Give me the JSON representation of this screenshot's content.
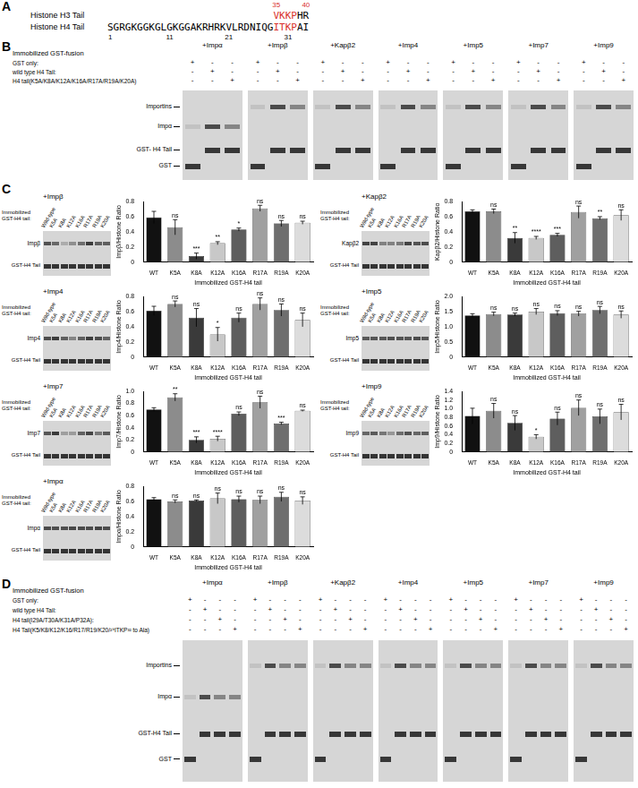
{
  "panel_a": {
    "letter": "A",
    "h3": {
      "label": "Histone H3 Tail",
      "numbers": {
        "values": [
          35,
          40
        ],
        "color": "#d9302b"
      },
      "segments": [
        {
          "text": "VKKP",
          "color": "#d9302b"
        },
        {
          "text": "HR",
          "color": "#000000"
        }
      ]
    },
    "h4": {
      "label": "Histone H4 Tail",
      "numbers": {
        "values": [
          1,
          11,
          21,
          31
        ],
        "color": "#000000"
      },
      "segments": [
        {
          "text": "SGRGKGGKGLGKGGAKRHRKVLRDNIQG",
          "color": "#000000"
        },
        {
          "text": "ITKP",
          "color": "#d9302b"
        },
        {
          "text": "AI",
          "color": "#000000"
        }
      ]
    }
  },
  "panel_b": {
    "letter": "B",
    "header": "Immobilized GST-fusion",
    "groups": [
      "+Impα",
      "+Impβ",
      "+Kapβ2",
      "+Imp4",
      "+Imp5",
      "+Imp7",
      "+Imp9"
    ],
    "rows": [
      "GST only:",
      "wild type H4 Tail:",
      "H4 tail(K5A/K8A/K12A/K16A/R17A/R19A/K20A)"
    ],
    "signs": [
      [
        "+",
        "-",
        "-"
      ],
      [
        "-",
        "+",
        "-"
      ],
      [
        "-",
        "-",
        "+"
      ]
    ],
    "band_labels": [
      "Importins",
      "Impα",
      "GST- H4 Tail",
      "GST"
    ]
  },
  "panel_c": {
    "letter": "C"
  },
  "chart_data": [
    {
      "type": "bar",
      "categories": [
        "WT",
        "K5A",
        "K8A",
        "K12A",
        "K16A",
        "R17A",
        "R19A",
        "K20A"
      ],
      "values": [
        0.59,
        0.46,
        0.08,
        0.25,
        0.43,
        0.71,
        0.51,
        0.52
      ],
      "errors": [
        0.08,
        0.1,
        0.04,
        0.02,
        0.02,
        0.04,
        0.04,
        0.02
      ],
      "significance": [
        null,
        "ns",
        "***",
        "**",
        "*",
        "ns",
        "ns",
        "ns"
      ],
      "colors": [
        "#111111",
        "#8c8c8c",
        "#3a3a3a",
        "#c8c8c8",
        "#5e5e5e",
        "#a0a0a0",
        "#6e6e6e",
        "#dcdcdc"
      ],
      "ylim": [
        0,
        0.8
      ],
      "yticks": [
        0,
        0.2,
        0.4,
        0.6,
        0.8
      ],
      "y_label": "Impβ/Histone Ratio",
      "x_label": "Immobilized GST-H4 tail",
      "grid": false,
      "gel": {
        "title": "+Impβ",
        "label": "Immobilized GST-H4 tail:",
        "lanes": [
          "Wild-type",
          "K5A",
          "K8A",
          "K12A",
          "K16A",
          "R17A",
          "R19A",
          "K20A"
        ],
        "bands": [
          "Impβ",
          "GST-H4 Tail"
        ]
      }
    },
    {
      "type": "bar",
      "categories": [
        "WT",
        "K5A",
        "K8A",
        "K12A",
        "K16A",
        "R17A",
        "R19A",
        "K20A"
      ],
      "values": [
        0.67,
        0.67,
        0.32,
        0.32,
        0.36,
        0.66,
        0.58,
        0.62
      ],
      "errors": [
        0.02,
        0.03,
        0.07,
        0.02,
        0.02,
        0.08,
        0.02,
        0.07
      ],
      "significance": [
        null,
        "ns",
        "**",
        "****",
        "***",
        "ns",
        "**",
        "ns"
      ],
      "colors": [
        "#111111",
        "#8c8c8c",
        "#3a3a3a",
        "#c8c8c8",
        "#5e5e5e",
        "#a0a0a0",
        "#6e6e6e",
        "#dcdcdc"
      ],
      "ylim": [
        0,
        0.8
      ],
      "yticks": [
        0,
        0.2,
        0.4,
        0.6,
        0.8
      ],
      "y_label": "Kapβ2/Histone Ratio",
      "x_label": "Immobilized GST-H4 tail",
      "grid": false,
      "gel": {
        "title": "+Kapβ2",
        "label": "Immobilized GST-H4 tail:",
        "lanes": [
          "Wild-type",
          "K5A",
          "K8A",
          "K12A",
          "K16A",
          "R17A",
          "R19A",
          "K20A"
        ],
        "bands": [
          "Kapβ2",
          "GST-H4 Tail"
        ]
      }
    },
    {
      "type": "bar",
      "categories": [
        "WT",
        "K5A",
        "K8A",
        "K12A",
        "K16A",
        "R17A",
        "R19A",
        "K20A"
      ],
      "values": [
        0.61,
        0.7,
        0.52,
        0.3,
        0.52,
        0.7,
        0.62,
        0.49
      ],
      "errors": [
        0.06,
        0.04,
        0.12,
        0.09,
        0.06,
        0.08,
        0.08,
        0.09
      ],
      "significance": [
        null,
        "ns",
        "ns",
        "*",
        "ns",
        "ns",
        "ns",
        "ns"
      ],
      "colors": [
        "#111111",
        "#8c8c8c",
        "#3a3a3a",
        "#c8c8c8",
        "#5e5e5e",
        "#a0a0a0",
        "#6e6e6e",
        "#dcdcdc"
      ],
      "ylim": [
        0,
        0.8
      ],
      "yticks": [
        0,
        0.2,
        0.4,
        0.6,
        0.8
      ],
      "y_label": "Imp4/Histone Ratio",
      "x_label": "Immobilized GST-H4 tail",
      "grid": false,
      "gel": {
        "title": "+Imp4",
        "label": "Immobilized GST-H4 tail:",
        "lanes": [
          "Wild-type",
          "K5A",
          "K8A",
          "K12A",
          "K16A",
          "R17A",
          "R19A",
          "K20A"
        ],
        "bands": [
          "Imp4",
          "GST-H4 Tail"
        ]
      }
    },
    {
      "type": "bar",
      "categories": [
        "WT",
        "K5A",
        "K8A",
        "K12A",
        "K16A",
        "R17A",
        "R19A",
        "K20A"
      ],
      "values": [
        1.37,
        1.42,
        1.4,
        1.5,
        1.45,
        1.43,
        1.55,
        1.4
      ],
      "errors": [
        0.06,
        0.06,
        0.05,
        0.1,
        0.08,
        0.08,
        0.12,
        0.12
      ],
      "significance": [
        null,
        "ns",
        "ns",
        "ns",
        "ns",
        "ns",
        "ns",
        "ns"
      ],
      "colors": [
        "#111111",
        "#8c8c8c",
        "#3a3a3a",
        "#c8c8c8",
        "#5e5e5e",
        "#a0a0a0",
        "#6e6e6e",
        "#dcdcdc"
      ],
      "ylim": [
        0,
        2
      ],
      "yticks": [
        0,
        0.5,
        {
          "value": 1,
          "label": "1.0"
        },
        1.5,
        {
          "value": 2,
          "label": "2.0"
        }
      ],
      "y_label": "Imp5/Histone Ratio",
      "x_label": "Immobilized GST-H4 tail",
      "grid": false,
      "gel": {
        "title": "+Imp5",
        "label": "Immobilized GST-H4 tail:",
        "lanes": [
          "Wild-type",
          "K5A",
          "K8A",
          "K12A",
          "K16A",
          "R17A",
          "R19A",
          "K20A"
        ],
        "bands": [
          "Imp5",
          "GST-H4 Tail"
        ]
      }
    },
    {
      "type": "bar",
      "categories": [
        "WT",
        "K5A",
        "K8A",
        "K12A",
        "K16A",
        "R17A",
        "R19A",
        "K20A"
      ],
      "values": [
        0.7,
        0.9,
        0.2,
        0.22,
        0.63,
        0.82,
        0.47,
        0.68
      ],
      "errors": [
        0.03,
        0.06,
        0.05,
        0.04,
        0.03,
        0.1,
        0.02,
        0.01
      ],
      "significance": [
        null,
        "**",
        "***",
        "****",
        "ns",
        "ns",
        "***",
        "ns"
      ],
      "colors": [
        "#111111",
        "#8c8c8c",
        "#3a3a3a",
        "#c8c8c8",
        "#5e5e5e",
        "#a0a0a0",
        "#6e6e6e",
        "#dcdcdc"
      ],
      "ylim": [
        0,
        1
      ],
      "yticks": [
        0,
        0.2,
        0.4,
        0.6,
        0.8,
        {
          "value": 1,
          "label": "1.0"
        }
      ],
      "y_label": "Imp7/Histone Ratio",
      "x_label": "Immobilized GST-H4 tail",
      "grid": false,
      "gel": {
        "title": "+Imp7",
        "label": "Immobilized GST-H4 tail:",
        "lanes": [
          "Wild-type",
          "K5A",
          "K8A",
          "K12A",
          "K16A",
          "R17A",
          "R19A",
          "K20A"
        ],
        "bands": [
          "Imp7",
          "GST-H4 Tail"
        ]
      }
    },
    {
      "type": "bar",
      "categories": [
        "WT",
        "K5A",
        "K8A",
        "K12A",
        "K16A",
        "R17A",
        "R19A",
        "K20A"
      ],
      "values": [
        0.83,
        0.95,
        0.67,
        0.35,
        0.77,
        1.02,
        0.82,
        0.92
      ],
      "errors": [
        0.18,
        0.17,
        0.17,
        0.05,
        0.15,
        0.18,
        0.17,
        0.18
      ],
      "significance": [
        null,
        "ns",
        "ns",
        "*",
        "ns",
        "ns",
        "ns",
        "ns"
      ],
      "colors": [
        "#111111",
        "#8c8c8c",
        "#3a3a3a",
        "#c8c8c8",
        "#5e5e5e",
        "#a0a0a0",
        "#6e6e6e",
        "#dcdcdc"
      ],
      "ylim": [
        0,
        1.4
      ],
      "yticks": [
        0,
        0.2,
        0.4,
        0.6,
        0.8,
        {
          "value": 1,
          "label": "1.0"
        },
        1.2,
        1.4
      ],
      "y_label": "Imp9/Histone Ratio",
      "x_label": "Immobilized GST-H4 tail",
      "grid": false,
      "gel": {
        "title": "+Imp9",
        "label": "Immobilized GST-H4 tail:",
        "lanes": [
          "Wild-type",
          "K5A",
          "K8A",
          "K12A",
          "K16A",
          "R17A",
          "R19A",
          "K20A"
        ],
        "bands": [
          "Imp9",
          "GST-H4 Tail"
        ]
      }
    },
    {
      "type": "bar",
      "categories": [
        "WT",
        "K5A",
        "K8A",
        "K12A",
        "K16A",
        "R17A",
        "R19A",
        "K20A"
      ],
      "values": [
        0.63,
        0.6,
        0.61,
        0.64,
        0.63,
        0.62,
        0.66,
        0.61
      ],
      "errors": [
        0.02,
        0.02,
        0.01,
        0.07,
        0.04,
        0.05,
        0.06,
        0.05
      ],
      "significance": [
        null,
        "ns",
        "ns",
        "ns",
        "ns",
        "ns",
        "ns",
        "ns"
      ],
      "colors": [
        "#111111",
        "#8c8c8c",
        "#3a3a3a",
        "#c8c8c8",
        "#5e5e5e",
        "#a0a0a0",
        "#6e6e6e",
        "#dcdcdc"
      ],
      "ylim": [
        0,
        0.8
      ],
      "yticks": [
        0,
        0.2,
        0.4,
        0.6,
        0.8
      ],
      "y_label": "Impα/Histone Ratio",
      "x_label": "Immobilized GST-H4 tail",
      "grid": false,
      "gel": {
        "title": "+Impα",
        "label": "Immobilized GST-H4 tail:",
        "lanes": [
          "Wild-type",
          "K5A",
          "K8A",
          "K12A",
          "K16A",
          "R17A",
          "R19A",
          "K20A"
        ],
        "bands": [
          "Impα",
          "GST-H4 Tail"
        ]
      }
    }
  ],
  "panel_d": {
    "letter": "D",
    "header": "Immobilized GST-fusion",
    "groups": [
      "+Impα",
      "+Impβ",
      "+Kapβ2",
      "+Imp4",
      "+Imp5",
      "+Imp7",
      "+Imp9"
    ],
    "rows": [
      "GST only:",
      "wild type H4 Tail:",
      "H4 tail(I29A/T30A/K31A/P32A):",
      "H4 Tail(K5/K8/K12/K16/R17/R19/K20/²⁹ITKP³² to Ala)"
    ],
    "signs": [
      [
        "+",
        "-",
        "-",
        "-"
      ],
      [
        "-",
        "+",
        "-",
        "-"
      ],
      [
        "-",
        "-",
        "+",
        "-"
      ],
      [
        "-",
        "-",
        "-",
        "+"
      ]
    ],
    "band_labels": [
      "Importins",
      "Impα",
      "GST-H4 Tail",
      "GST"
    ]
  }
}
